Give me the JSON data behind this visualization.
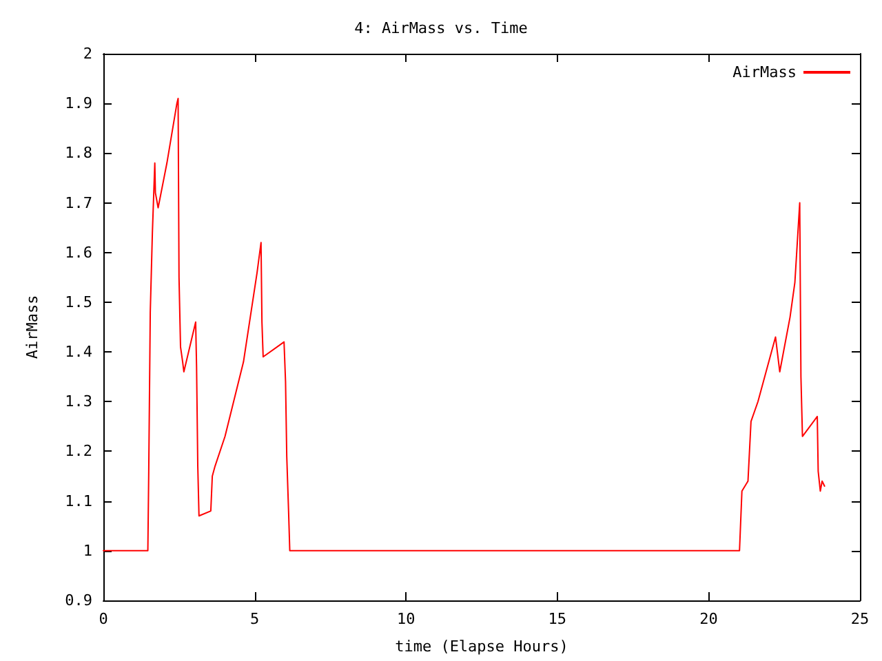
{
  "chart_data": {
    "type": "line",
    "title": "4: AirMass vs. Time",
    "xlabel": "time (Elapse Hours)",
    "ylabel": "AirMass",
    "xlim": [
      0,
      25
    ],
    "xticks": [
      0,
      5,
      10,
      15,
      20,
      25
    ],
    "ylim": [
      0.9,
      2
    ],
    "yticks": [
      0.9,
      1,
      1.1,
      1.2,
      1.3,
      1.4,
      1.5,
      1.6,
      1.7,
      1.8,
      1.9,
      2
    ],
    "grid": false,
    "legend": "top right",
    "marker": "none",
    "line_style": "solid",
    "series": [
      {
        "name": "AirMass",
        "color": "#ff0000",
        "x": [
          0,
          1.47,
          1.5,
          1.55,
          1.62,
          1.7,
          1.72,
          1.81,
          2.1,
          2.43,
          2.47,
          2.5,
          2.55,
          2.62,
          2.66,
          3.05,
          3.08,
          3.12,
          3.16,
          3.55,
          3.6,
          3.69,
          4.02,
          4.63,
          5.08,
          5.21,
          5.24,
          5.28,
          5.97,
          6.02,
          6.06,
          6.12,
          6.16,
          21.02,
          21.1,
          21.3,
          21.4,
          21.63,
          22.21,
          22.35,
          22.69,
          22.85,
          23.01,
          23.05,
          23.1,
          23.59,
          23.62,
          23.69,
          23.75,
          23.83
        ],
        "values": [
          1,
          1,
          1.16,
          1.48,
          1.64,
          1.78,
          1.72,
          1.69,
          1.78,
          1.9,
          1.91,
          1.55,
          1.41,
          1.38,
          1.36,
          1.46,
          1.37,
          1.17,
          1.07,
          1.08,
          1.15,
          1.17,
          1.23,
          1.38,
          1.56,
          1.62,
          1.46,
          1.39,
          1.42,
          1.34,
          1.19,
          1.08,
          1,
          1,
          1.12,
          1.14,
          1.26,
          1.3,
          1.43,
          1.36,
          1.47,
          1.54,
          1.7,
          1.35,
          1.23,
          1.27,
          1.16,
          1.12,
          1.14,
          1.13
        ]
      }
    ]
  }
}
